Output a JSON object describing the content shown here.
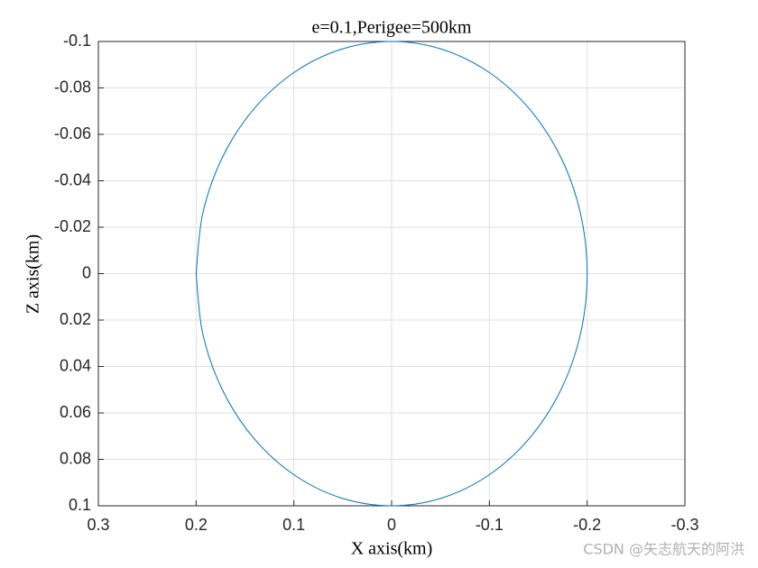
{
  "chart_data": {
    "type": "line",
    "title": "e=0.1,Perigee=500km",
    "x_label": "X axis(km)",
    "y_label": "Z axis(km)",
    "xlim": [
      0.3,
      -0.3
    ],
    "xticks": [
      0.3,
      0.2,
      0.1,
      0,
      -0.1,
      -0.2,
      -0.3
    ],
    "ylim": [
      -0.1,
      0.1
    ],
    "yticks": [
      -0.1,
      -0.08,
      -0.06,
      -0.04,
      -0.02,
      0,
      0.02,
      0.04,
      0.06,
      0.08,
      0.1
    ],
    "grid": true,
    "series": [
      {
        "color": "#0072bd",
        "x": [
          0.2,
          0.1932,
          0.1732,
          0.1414,
          0.1,
          0.0518,
          0,
          -0.0518,
          -0.1,
          -0.1414,
          -0.1732,
          -0.1932,
          -0.2,
          -0.1932,
          -0.1732,
          -0.1414,
          -0.1,
          -0.0518,
          0,
          0.0518,
          0.1,
          0.1414,
          0.1732,
          0.1932,
          0.2
        ],
        "values": [
          0,
          0.0259,
          0.05,
          0.0707,
          0.0866,
          0.0966,
          0.1,
          0.0966,
          0.0866,
          0.0707,
          0.05,
          0.0259,
          0,
          -0.0259,
          -0.05,
          -0.0707,
          -0.0866,
          -0.0966,
          -0.1,
          -0.0966,
          -0.0866,
          -0.0707,
          -0.05,
          -0.0259,
          0
        ]
      }
    ]
  },
  "watermark": "CSDN @矢志航天的阿洪"
}
